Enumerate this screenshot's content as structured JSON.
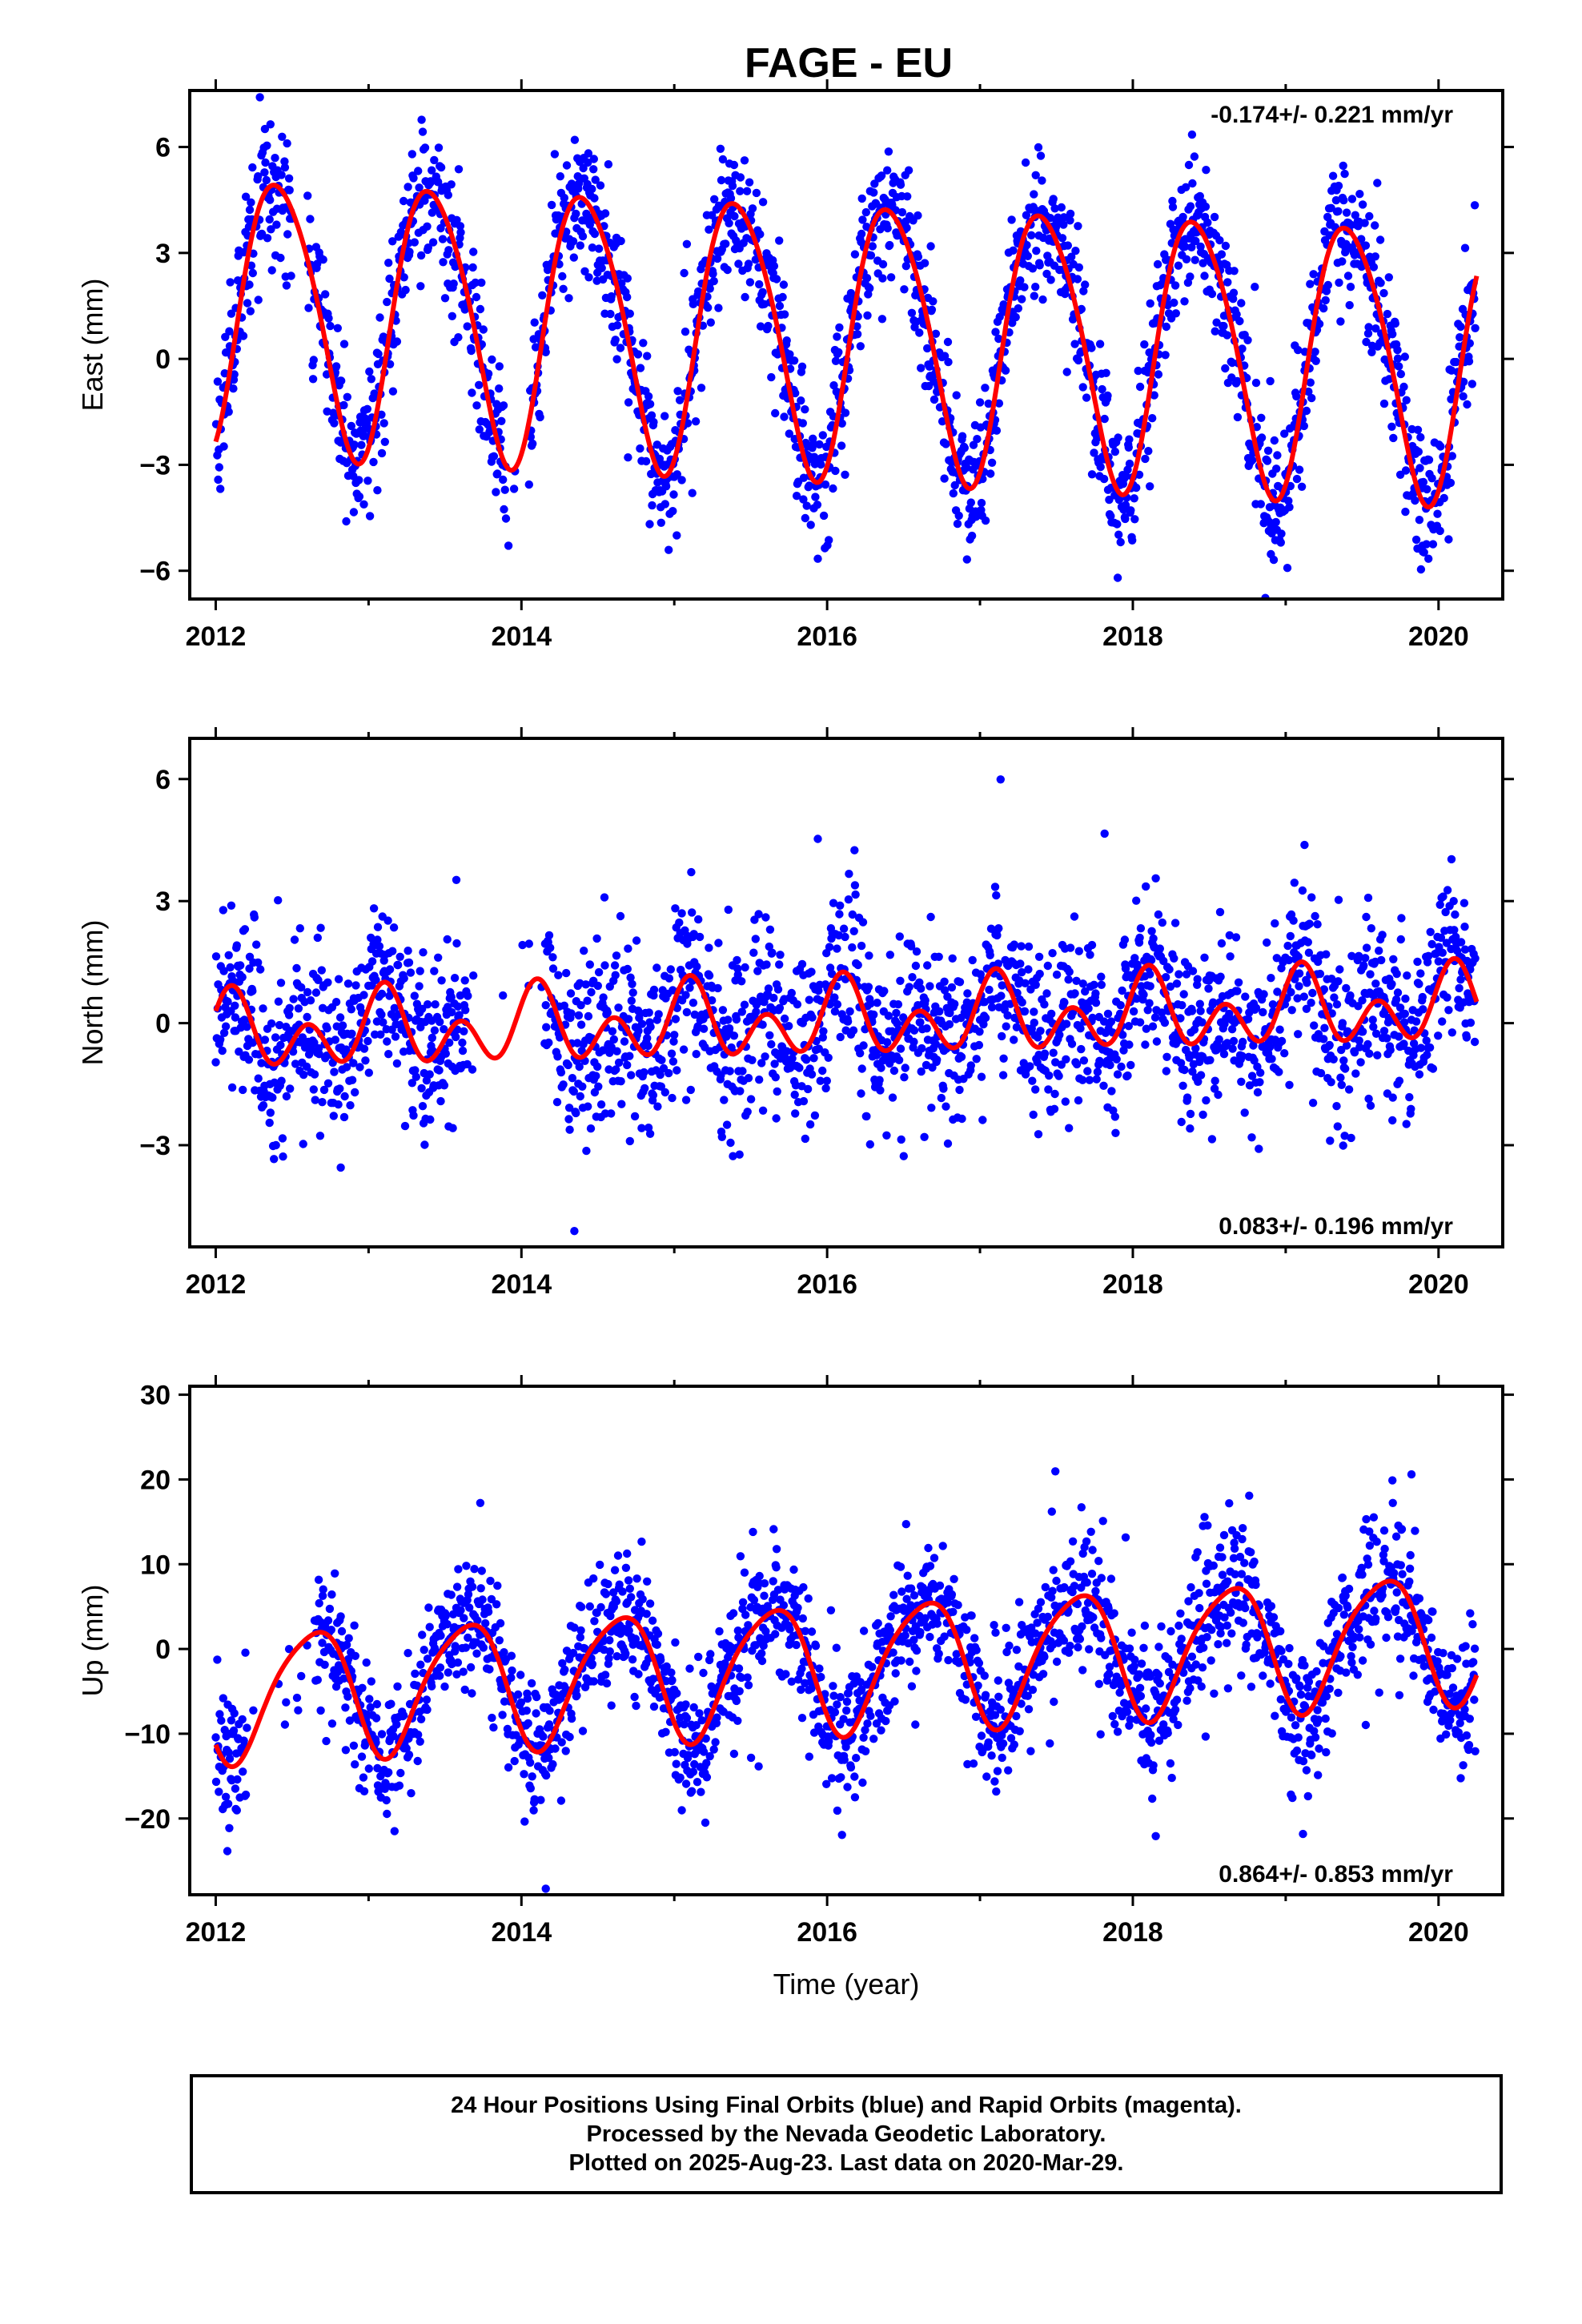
{
  "title": "FAGE - EU",
  "xlabel": "Time (year)",
  "colors": {
    "data_points": "#0000ff",
    "model_curve": "#ff0000",
    "frame": "#000000"
  },
  "footer": [
    "24 Hour Positions Using Final Orbits (blue) and Rapid Orbits (magenta).",
    "Processed by the Nevada Geodetic Laboratory.",
    "Plotted on 2025-Aug-23. Last data on 2020-Mar-29."
  ],
  "chart_data": [
    {
      "type": "scatter",
      "component": "East",
      "ylabel": "East (mm)",
      "rate_label": "-0.174+/- 0.221 mm/yr",
      "xlim": [
        2011.83,
        2020.42
      ],
      "ylim": [
        -6.8,
        7.6
      ],
      "xticks": [
        2012,
        2014,
        2016,
        2018,
        2020
      ],
      "yticks": [
        -6,
        -3,
        0,
        3,
        6
      ],
      "model": {
        "offset": 0.7,
        "rate": -0.174,
        "annual_amp": 3.85,
        "annual_phase": 2012.165,
        "semi_amp": 0.45,
        "semi_phase": 2012.1
      },
      "scatter": {
        "noise_sd": 1.0,
        "sample_step_days": 1.2,
        "gap": [
          2012.5,
          2012.6
        ],
        "gap2": [
          2013.9,
          2014.05
        ]
      },
      "series": [
        {
          "values": []
        },
        {
          "values": []
        }
      ]
    },
    {
      "type": "scatter",
      "component": "North",
      "ylabel": "North (mm)",
      "rate_label": "0.083+/- 0.196 mm/yr",
      "xlim": [
        2011.83,
        2020.42
      ],
      "ylim": [
        -5.5,
        7.0
      ],
      "xticks": [
        2012,
        2014,
        2016,
        2018,
        2020
      ],
      "yticks": [
        -3,
        0,
        3,
        6
      ],
      "model": {
        "offset": 0.05,
        "rate": 0.083,
        "annual_amp": 0.5,
        "annual_phase": 2011.85,
        "semi_amp": 0.7,
        "semi_phase": 2011.98
      },
      "scatter": {
        "noise_sd": 1.05,
        "sample_step_days": 1.2,
        "gap": [
          2013.65,
          2014.15
        ]
      },
      "series": [
        {
          "values": []
        },
        {
          "values": []
        }
      ]
    },
    {
      "type": "scatter",
      "component": "Up",
      "ylabel": "Up (mm)",
      "rate_label": "0.864+/- 0.853 mm/yr",
      "xlim": [
        2011.83,
        2020.42
      ],
      "ylim": [
        -29,
        31
      ],
      "xticks": [
        2012,
        2014,
        2016,
        2018,
        2020
      ],
      "yticks": [
        -20,
        -10,
        0,
        10,
        20,
        30
      ],
      "model": {
        "offset": -2.0,
        "rate": 0.864,
        "annual_amp": 7.5,
        "annual_phase": 2012.38,
        "semi_amp": 1.2,
        "semi_phase": 2012.2
      },
      "scatter": {
        "noise_sd": 4.0,
        "sample_step_days": 1.2,
        "gap": [
          2012.2,
          2012.65
        ]
      },
      "series": [
        {
          "values": []
        },
        {
          "values": []
        }
      ]
    }
  ]
}
